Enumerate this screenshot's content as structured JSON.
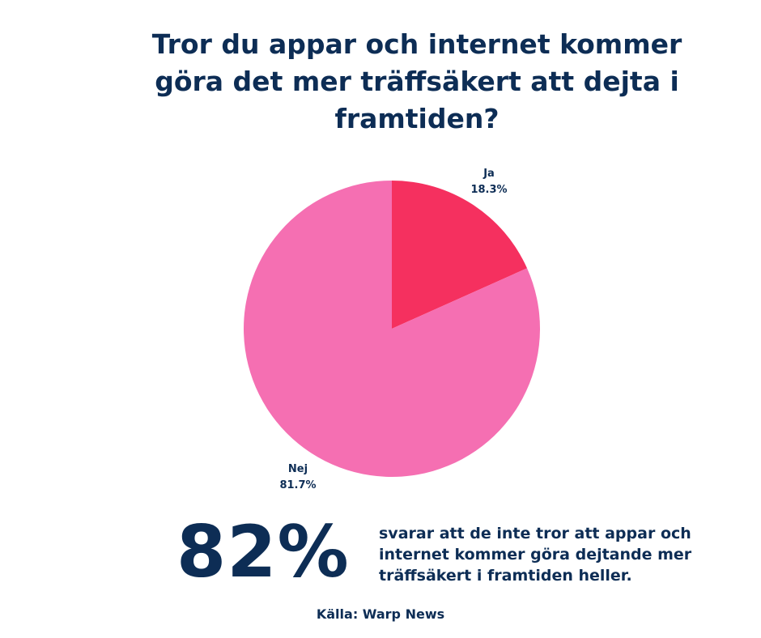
{
  "chart_data": {
    "type": "pie",
    "title": "Tror du appar och internet kommer göra det mer träffsäkert att dejta i framtiden?",
    "slices": [
      {
        "name": "Ja",
        "value": 18.3,
        "label": "18.3%",
        "color": "#f5305f"
      },
      {
        "name": "Nej",
        "value": 81.7,
        "label": "81.7%",
        "color": "#f56fb2"
      }
    ],
    "legend": "none"
  },
  "stat": {
    "value": "82%",
    "description": "svarar att de inte tror att appar och internet kommer göra dejtande mer träffsäkert i framtiden heller."
  },
  "source": "Källa: Warp News",
  "colors": {
    "text": "#0d2d55",
    "background": "#ffffff"
  }
}
